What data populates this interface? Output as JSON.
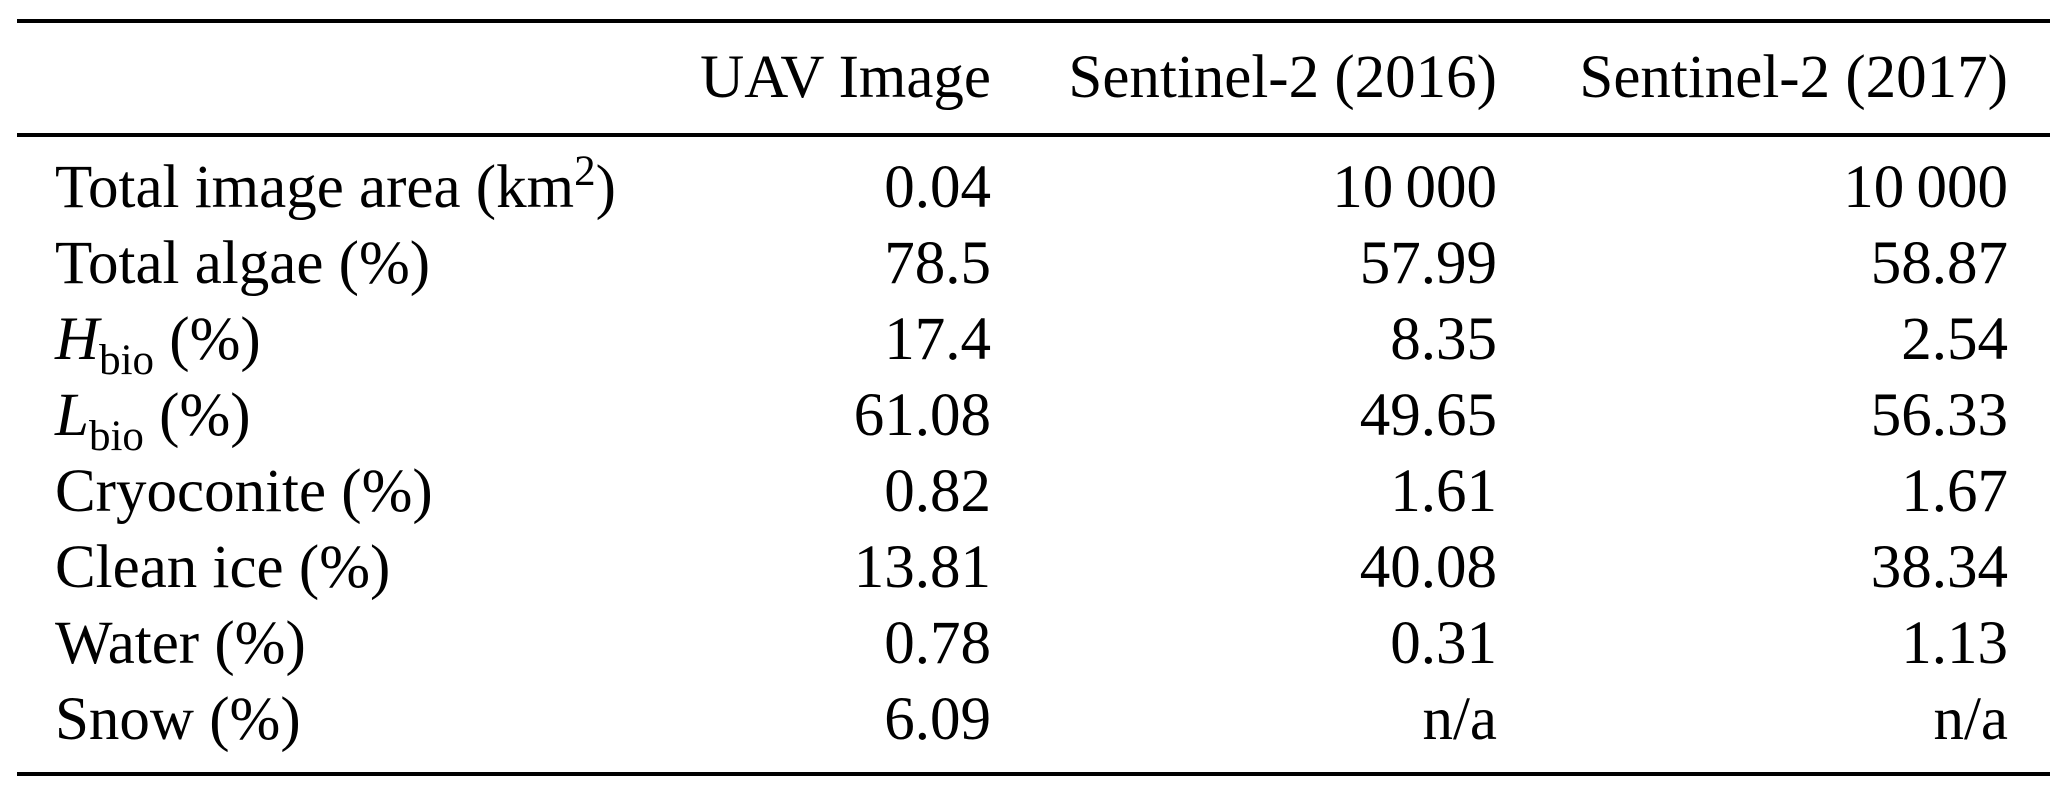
{
  "table": {
    "columns": [
      "",
      "UAV Image",
      "Sentinel-2 (2016)",
      "Sentinel-2 (2017)"
    ],
    "rows": [
      {
        "label_pre": "Total image area (km",
        "label_sup": "2",
        "label_post": ")",
        "uav": "0.04",
        "s2016": "10 000",
        "s2017": "10 000"
      },
      {
        "label_pre": "Total algae (%)",
        "uav": "78.5",
        "s2016": "57.99",
        "s2017": "58.87"
      },
      {
        "label_var": "H",
        "label_sub": "bio",
        "label_post": " (%)",
        "uav": "17.4",
        "s2016": "8.35",
        "s2017": "2.54"
      },
      {
        "label_var": "L",
        "label_sub": "bio",
        "label_post": " (%)",
        "uav": "61.08",
        "s2016": "49.65",
        "s2017": "56.33"
      },
      {
        "label_pre": "Cryoconite (%)",
        "uav": "0.82",
        "s2016": "1.61",
        "s2017": "1.67"
      },
      {
        "label_pre": "Clean ice (%)",
        "uav": "13.81",
        "s2016": "40.08",
        "s2017": "38.34"
      },
      {
        "label_pre": "Water (%)",
        "uav": "0.78",
        "s2016": "0.31",
        "s2017": "1.13"
      },
      {
        "label_pre": "Snow (%)",
        "uav": "6.09",
        "s2016": "n/a",
        "s2017": "n/a"
      }
    ]
  },
  "colors": {
    "text": "#000000",
    "background": "#ffffff",
    "rule": "#000000"
  }
}
